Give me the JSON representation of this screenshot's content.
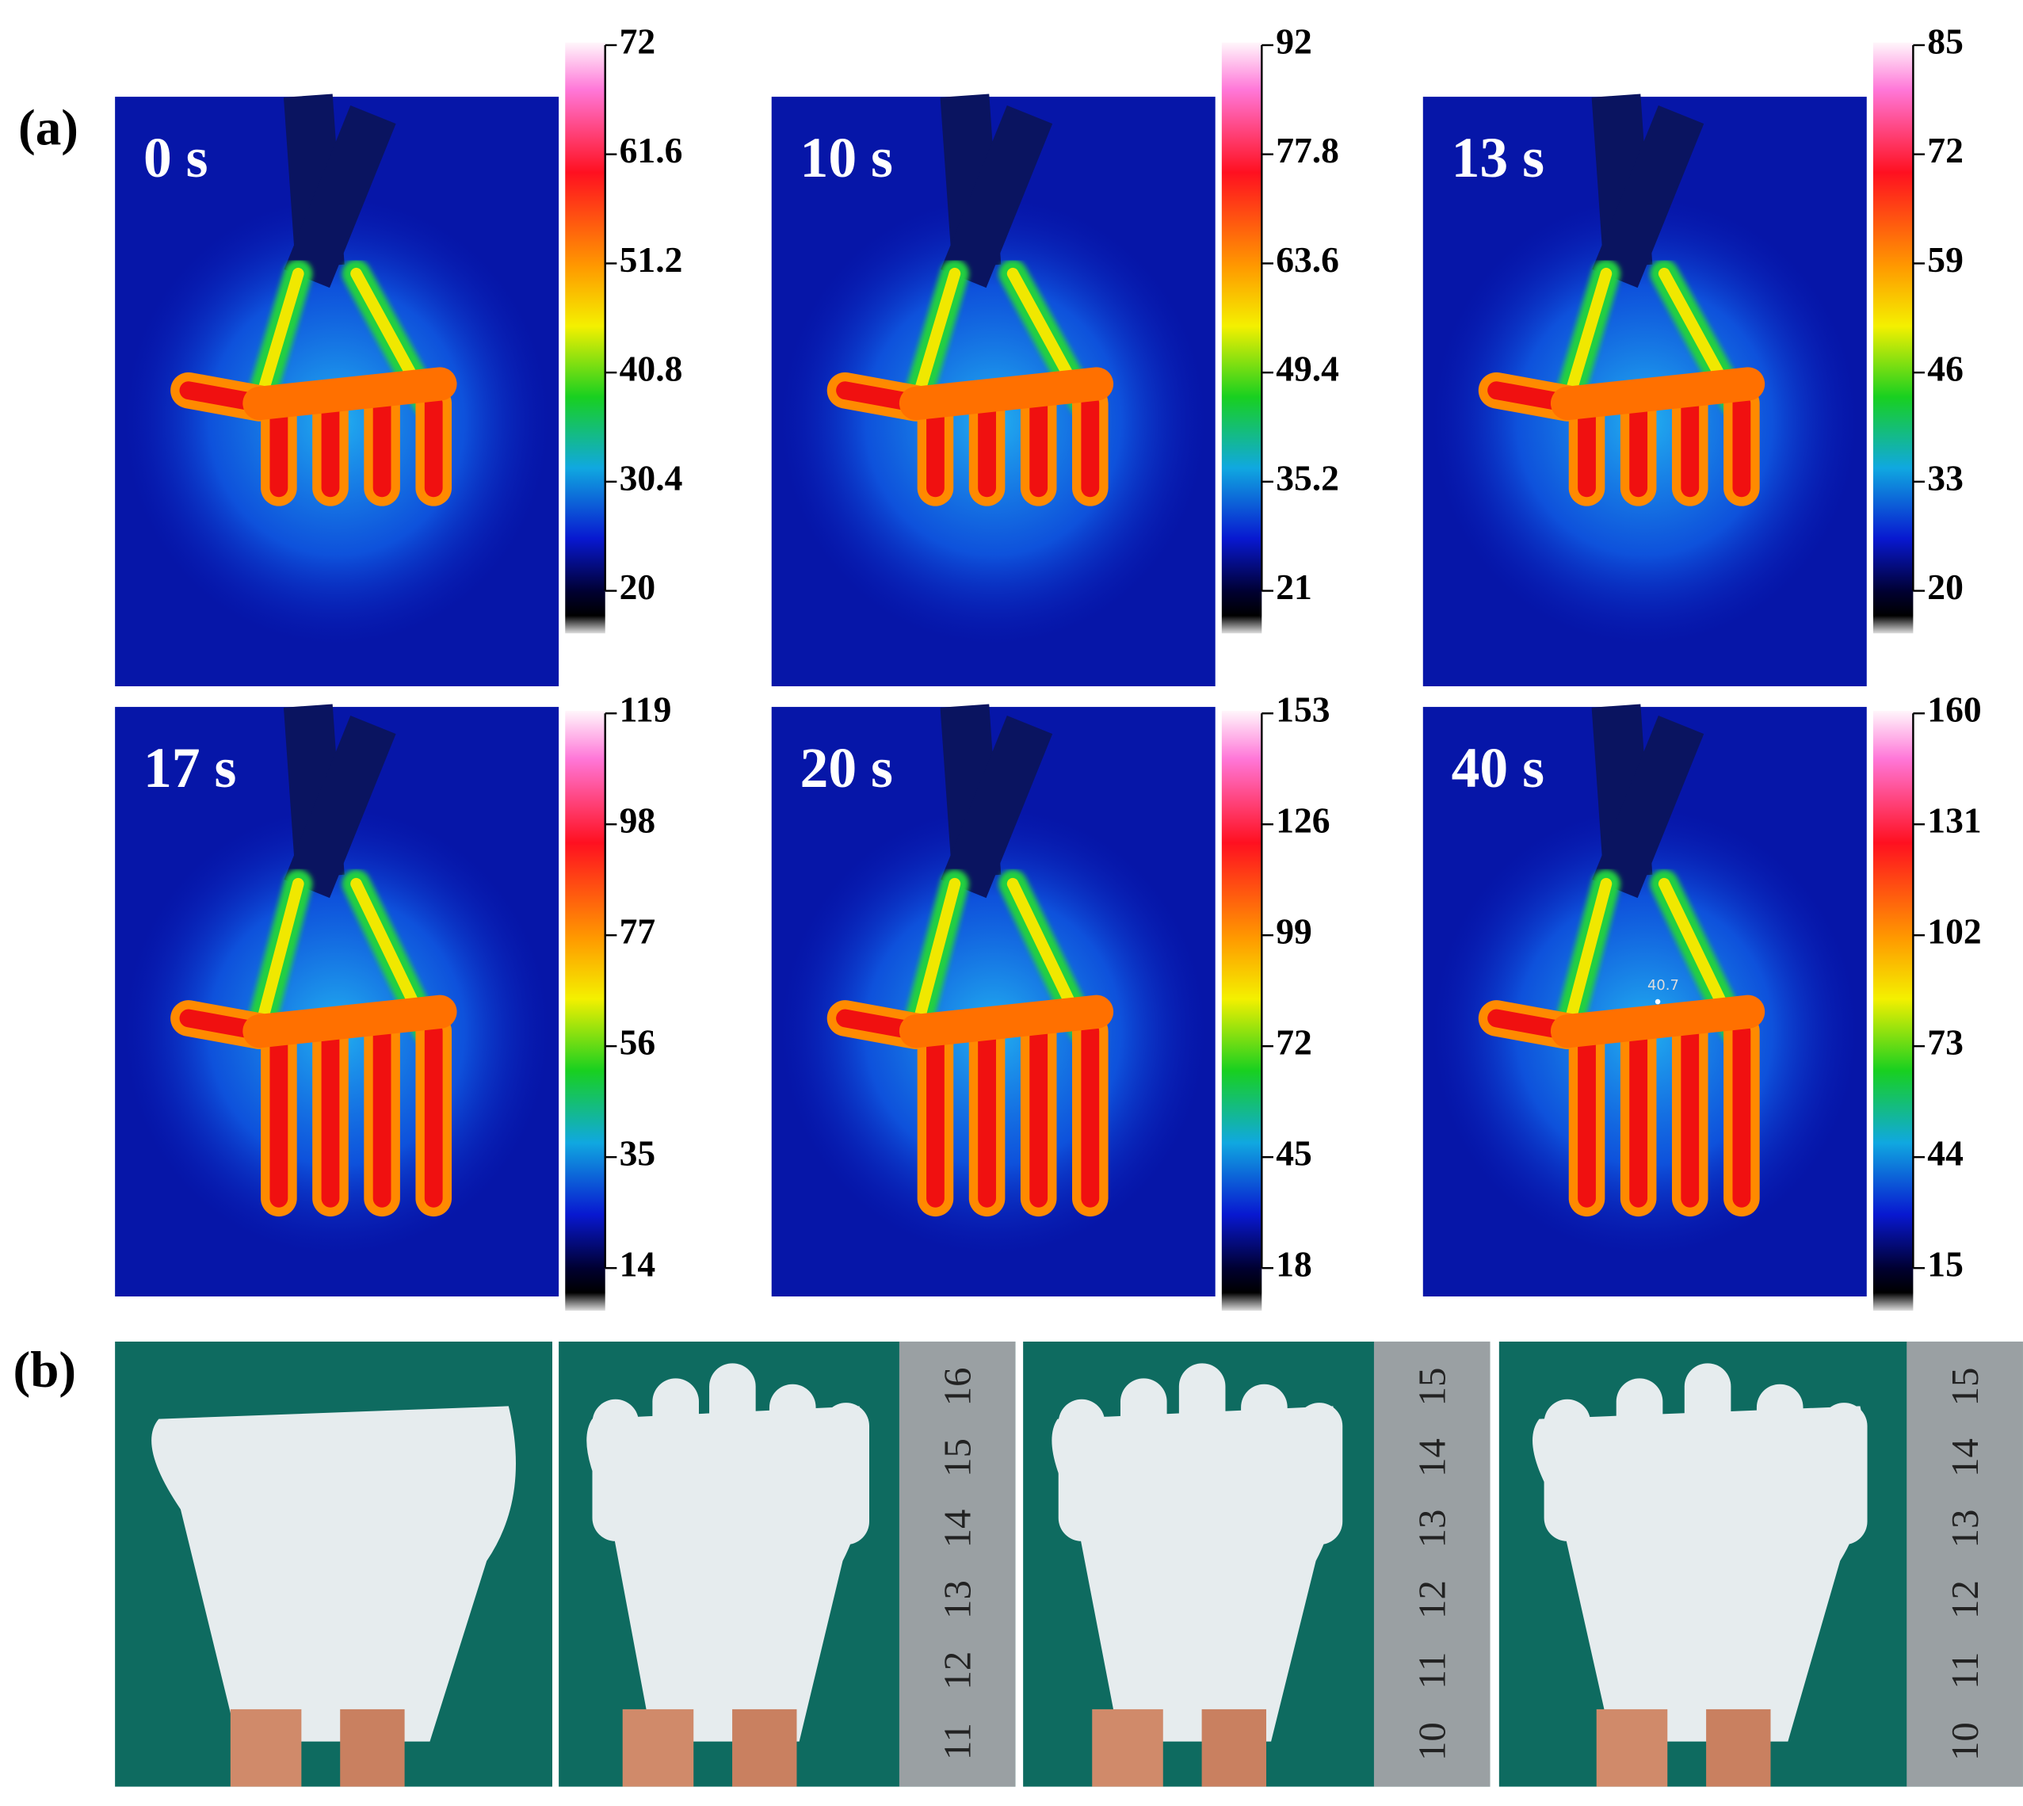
{
  "panel_a": {
    "label": "(a)",
    "frames": [
      {
        "time": "0 s",
        "colorbar_ticks": [
          72,
          61.6,
          51.2,
          40.8,
          30.4,
          20
        ]
      },
      {
        "time": "10 s",
        "colorbar_ticks": [
          92,
          77.8,
          63.6,
          49.4,
          35.2,
          21
        ]
      },
      {
        "time": "13 s",
        "colorbar_ticks": [
          85,
          72,
          59,
          46,
          33,
          20
        ]
      },
      {
        "time": "17 s",
        "colorbar_ticks": [
          119,
          98,
          77,
          56,
          35,
          14
        ]
      },
      {
        "time": "20 s",
        "colorbar_ticks": [
          153,
          126,
          99,
          72,
          45,
          18
        ]
      },
      {
        "time": "40 s",
        "colorbar_ticks": [
          160,
          131,
          102,
          73,
          44,
          15
        ],
        "annotation": "40.7"
      }
    ]
  },
  "panel_b": {
    "label": "(b)",
    "rulers": [
      [
        "16",
        "15",
        "14",
        "13",
        "12",
        "11"
      ],
      [
        "15",
        "14",
        "13",
        "12",
        "11",
        "10"
      ],
      [
        "15",
        "14",
        "13",
        "12",
        "11",
        "10"
      ]
    ]
  }
}
